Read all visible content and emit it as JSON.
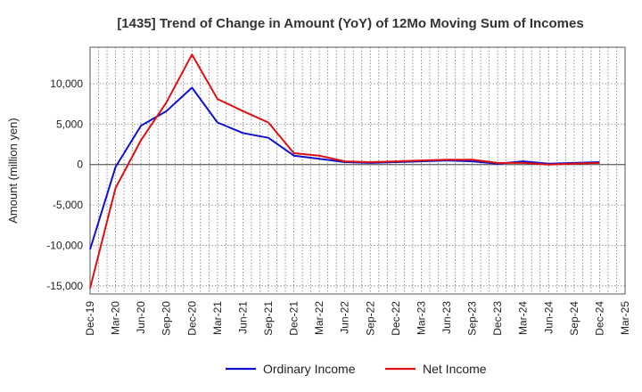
{
  "chart_data": {
    "type": "line",
    "title": "[1435]  Trend of Change in Amount (YoY) of 12Mo Moving Sum of Incomes",
    "xlabel": "",
    "ylabel": "Amount (million yen)",
    "ylim": [
      -16000,
      14500
    ],
    "yticks": [
      10000,
      5000,
      0,
      -5000,
      -10000,
      -15000
    ],
    "ytick_labels": [
      "10,000",
      "5,000",
      "0",
      "-5,000",
      "-10,000",
      "-15,000"
    ],
    "categories": [
      "Dec-19",
      "Mar-20",
      "Jun-20",
      "Sep-20",
      "Dec-20",
      "Mar-21",
      "Jun-21",
      "Sep-21",
      "Dec-21",
      "Mar-22",
      "Jun-22",
      "Sep-22",
      "Dec-22",
      "Mar-23",
      "Jun-23",
      "Sep-23",
      "Dec-23",
      "Mar-24",
      "Jun-24",
      "Sep-24",
      "Dec-24",
      "Mar-25"
    ],
    "grid": true,
    "legend_position": "bottom",
    "series": [
      {
        "name": "Ordinary Income",
        "color": "#1010cc",
        "values": [
          -10500,
          -300,
          4800,
          6600,
          9500,
          5200,
          3900,
          3300,
          1100,
          700,
          300,
          200,
          300,
          400,
          500,
          400,
          100,
          400,
          100,
          200,
          300,
          null
        ]
      },
      {
        "name": "Net Income",
        "color": "#dd1111",
        "values": [
          -15300,
          -2900,
          3000,
          7700,
          13600,
          8100,
          6600,
          5200,
          1400,
          1100,
          400,
          300,
          400,
          500,
          600,
          600,
          200,
          200,
          0,
          100,
          200,
          null
        ]
      }
    ]
  }
}
